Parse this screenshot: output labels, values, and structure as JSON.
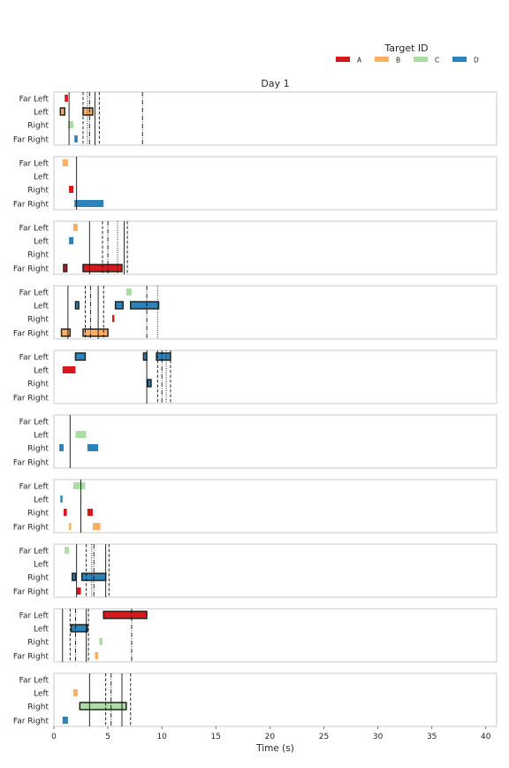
{
  "legend": {
    "title": "Target ID",
    "items": [
      {
        "label": "A",
        "color": "#d7191c"
      },
      {
        "label": "B",
        "color": "#fdae61"
      },
      {
        "label": "C",
        "color": "#abdda4"
      },
      {
        "label": "D",
        "color": "#2b83ba"
      }
    ]
  },
  "chart_data": {
    "type": "gantt",
    "title": "Day 1",
    "xlabel": "Time (s)",
    "xlim": [
      0,
      41
    ],
    "xticks": [
      0,
      5,
      10,
      15,
      20,
      25,
      30,
      35,
      40
    ],
    "rows": [
      "Far Left",
      "Left",
      "Right",
      "Far Right"
    ],
    "colors": {
      "A": "#d7191c",
      "B": "#fdae61",
      "C": "#abdda4",
      "D": "#2b83ba"
    },
    "grid": false,
    "legend_position": "top-right",
    "panels": [
      {
        "segments": [
          {
            "row": "Far Left",
            "target": "A",
            "start": 1.0,
            "end": 1.3,
            "outlined": false
          },
          {
            "row": "Left",
            "target": "B",
            "start": 0.6,
            "end": 1.0,
            "outlined": true
          },
          {
            "row": "Left",
            "target": "B",
            "start": 2.7,
            "end": 3.6,
            "outlined": true
          },
          {
            "row": "Right",
            "target": "C",
            "start": 1.3,
            "end": 1.8,
            "outlined": false
          },
          {
            "row": "Far Right",
            "target": "D",
            "start": 1.9,
            "end": 2.2,
            "outlined": false
          }
        ],
        "vlines": [
          {
            "x": 1.4,
            "style": "solid"
          },
          {
            "x": 2.7,
            "style": "dashed"
          },
          {
            "x": 3.1,
            "style": "dotted"
          },
          {
            "x": 3.3,
            "style": "dashdot"
          },
          {
            "x": 3.8,
            "style": "solid"
          },
          {
            "x": 4.2,
            "style": "dashed"
          },
          {
            "x": 8.2,
            "style": "dashdot"
          }
        ]
      },
      {
        "segments": [
          {
            "row": "Far Left",
            "target": "B",
            "start": 0.8,
            "end": 1.3,
            "outlined": false
          },
          {
            "row": "Right",
            "target": "A",
            "start": 1.4,
            "end": 1.8,
            "outlined": false
          },
          {
            "row": "Far Right",
            "target": "D",
            "start": 1.9,
            "end": 4.6,
            "outlined": false
          }
        ],
        "vlines": [
          {
            "x": 2.1,
            "style": "solid"
          }
        ]
      },
      {
        "segments": [
          {
            "row": "Far Left",
            "target": "B",
            "start": 1.8,
            "end": 2.2,
            "outlined": false
          },
          {
            "row": "Left",
            "target": "D",
            "start": 1.4,
            "end": 1.8,
            "outlined": false
          },
          {
            "row": "Far Right",
            "target": "A",
            "start": 0.9,
            "end": 1.2,
            "outlined": true
          },
          {
            "row": "Far Right",
            "target": "A",
            "start": 2.7,
            "end": 6.3,
            "outlined": true
          }
        ],
        "vlines": [
          {
            "x": 3.3,
            "style": "solid"
          },
          {
            "x": 4.5,
            "style": "dashed"
          },
          {
            "x": 5.0,
            "style": "dashdot"
          },
          {
            "x": 5.9,
            "style": "dotted"
          },
          {
            "x": 6.5,
            "style": "solid"
          },
          {
            "x": 6.8,
            "style": "dashed"
          }
        ]
      },
      {
        "segments": [
          {
            "row": "Far Left",
            "target": "C",
            "start": 6.7,
            "end": 7.2,
            "outlined": false
          },
          {
            "row": "Left",
            "target": "D",
            "start": 2.0,
            "end": 2.3,
            "outlined": true
          },
          {
            "row": "Left",
            "target": "D",
            "start": 5.7,
            "end": 6.4,
            "outlined": true
          },
          {
            "row": "Left",
            "target": "D",
            "start": 7.1,
            "end": 9.7,
            "outlined": true
          },
          {
            "row": "Right",
            "target": "A",
            "start": 5.4,
            "end": 5.6,
            "outlined": false
          },
          {
            "row": "Far Right",
            "target": "B",
            "start": 0.7,
            "end": 1.5,
            "outlined": true
          },
          {
            "row": "Far Right",
            "target": "B",
            "start": 2.7,
            "end": 5.0,
            "outlined": true
          }
        ],
        "vlines": [
          {
            "x": 1.3,
            "style": "solid"
          },
          {
            "x": 2.9,
            "style": "dashed"
          },
          {
            "x": 3.4,
            "style": "dashdot"
          },
          {
            "x": 4.1,
            "style": "solid"
          },
          {
            "x": 4.6,
            "style": "dashed"
          },
          {
            "x": 8.6,
            "style": "dashdot"
          },
          {
            "x": 9.6,
            "style": "dotted"
          }
        ]
      },
      {
        "segments": [
          {
            "row": "Far Left",
            "target": "D",
            "start": 2.0,
            "end": 2.9,
            "outlined": true
          },
          {
            "row": "Far Left",
            "target": "D",
            "start": 8.3,
            "end": 8.6,
            "outlined": true
          },
          {
            "row": "Far Left",
            "target": "D",
            "start": 9.5,
            "end": 10.8,
            "outlined": true
          },
          {
            "row": "Left",
            "target": "A",
            "start": 0.8,
            "end": 2.0,
            "outlined": false
          },
          {
            "row": "Right",
            "target": "D",
            "start": 8.7,
            "end": 9.0,
            "outlined": true
          }
        ],
        "vlines": [
          {
            "x": 8.6,
            "style": "solid"
          },
          {
            "x": 9.6,
            "style": "dashed"
          },
          {
            "x": 10.0,
            "style": "dashdot"
          },
          {
            "x": 10.4,
            "style": "dotted"
          },
          {
            "x": 10.8,
            "style": "dashed"
          }
        ]
      },
      {
        "segments": [
          {
            "row": "Left",
            "target": "C",
            "start": 2.0,
            "end": 3.0,
            "outlined": false
          },
          {
            "row": "Right",
            "target": "D",
            "start": 0.5,
            "end": 0.9,
            "outlined": false
          },
          {
            "row": "Right",
            "target": "D",
            "start": 3.1,
            "end": 4.1,
            "outlined": false
          }
        ],
        "vlines": [
          {
            "x": 1.5,
            "style": "solid"
          }
        ]
      },
      {
        "segments": [
          {
            "row": "Far Left",
            "target": "C",
            "start": 1.8,
            "end": 2.9,
            "outlined": false
          },
          {
            "row": "Left",
            "target": "D",
            "start": 0.6,
            "end": 0.8,
            "outlined": false
          },
          {
            "row": "Right",
            "target": "A",
            "start": 0.9,
            "end": 1.2,
            "outlined": false
          },
          {
            "row": "Right",
            "target": "A",
            "start": 3.1,
            "end": 3.6,
            "outlined": false
          },
          {
            "row": "Far Right",
            "target": "B",
            "start": 1.4,
            "end": 1.6,
            "outlined": false
          },
          {
            "row": "Far Right",
            "target": "B",
            "start": 3.6,
            "end": 4.3,
            "outlined": false
          }
        ],
        "vlines": [
          {
            "x": 2.5,
            "style": "solid"
          }
        ]
      },
      {
        "segments": [
          {
            "row": "Far Left",
            "target": "C",
            "start": 1.0,
            "end": 1.4,
            "outlined": false
          },
          {
            "row": "Right",
            "target": "D",
            "start": 1.7,
            "end": 2.0,
            "outlined": true
          },
          {
            "row": "Right",
            "target": "D",
            "start": 2.6,
            "end": 4.8,
            "outlined": true
          },
          {
            "row": "Far Right",
            "target": "A",
            "start": 2.1,
            "end": 2.5,
            "outlined": false
          }
        ],
        "vlines": [
          {
            "x": 2.1,
            "style": "solid"
          },
          {
            "x": 3.0,
            "style": "dashed"
          },
          {
            "x": 3.5,
            "style": "dotted"
          },
          {
            "x": 3.7,
            "style": "dashdot"
          },
          {
            "x": 4.8,
            "style": "solid"
          },
          {
            "x": 5.1,
            "style": "dashed"
          }
        ]
      },
      {
        "segments": [
          {
            "row": "Far Left",
            "target": "A",
            "start": 4.6,
            "end": 8.6,
            "outlined": true
          },
          {
            "row": "Left",
            "target": "D",
            "start": 1.6,
            "end": 3.1,
            "outlined": true
          },
          {
            "row": "Right",
            "target": "C",
            "start": 4.2,
            "end": 4.5,
            "outlined": false
          },
          {
            "row": "Far Right",
            "target": "B",
            "start": 3.8,
            "end": 4.1,
            "outlined": false
          }
        ],
        "vlines": [
          {
            "x": 0.8,
            "style": "solid"
          },
          {
            "x": 1.5,
            "style": "dashed"
          },
          {
            "x": 2.0,
            "style": "dashdot"
          },
          {
            "x": 3.0,
            "style": "solid"
          },
          {
            "x": 3.2,
            "style": "dashed"
          },
          {
            "x": 7.2,
            "style": "dashdot"
          }
        ]
      },
      {
        "segments": [
          {
            "row": "Left",
            "target": "B",
            "start": 1.8,
            "end": 2.2,
            "outlined": false
          },
          {
            "row": "Right",
            "target": "C",
            "start": 2.4,
            "end": 6.7,
            "outlined": true
          },
          {
            "row": "Far Right",
            "target": "D",
            "start": 0.8,
            "end": 1.3,
            "outlined": false
          }
        ],
        "vlines": [
          {
            "x": 3.3,
            "style": "solid"
          },
          {
            "x": 4.8,
            "style": "dashed"
          },
          {
            "x": 5.3,
            "style": "dashdot"
          },
          {
            "x": 6.3,
            "style": "solid"
          },
          {
            "x": 7.1,
            "style": "dashed"
          }
        ]
      }
    ]
  }
}
